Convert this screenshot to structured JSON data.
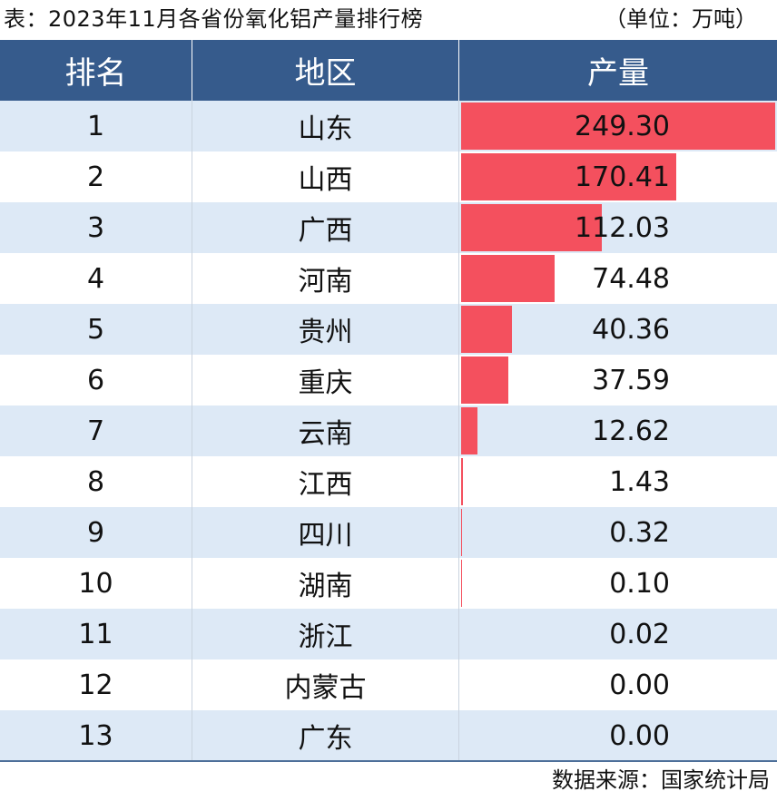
{
  "header": {
    "title": "表：2023年11月各省份氧化铝产量排行榜",
    "unit": "（单位：万吨）"
  },
  "table": {
    "columns": [
      "排名",
      "地区",
      "产量"
    ],
    "rows": [
      {
        "rank": "1",
        "region": "山东",
        "value": "249.30"
      },
      {
        "rank": "2",
        "region": "山西",
        "value": "170.41"
      },
      {
        "rank": "3",
        "region": "广西",
        "value": "112.03"
      },
      {
        "rank": "4",
        "region": "河南",
        "value": "74.48"
      },
      {
        "rank": "5",
        "region": "贵州",
        "value": "40.36"
      },
      {
        "rank": "6",
        "region": "重庆",
        "value": "37.59"
      },
      {
        "rank": "7",
        "region": "云南",
        "value": "12.62"
      },
      {
        "rank": "8",
        "region": "江西",
        "value": "1.43"
      },
      {
        "rank": "9",
        "region": "四川",
        "value": "0.32"
      },
      {
        "rank": "10",
        "region": "湖南",
        "value": "0.10"
      },
      {
        "rank": "11",
        "region": "浙江",
        "value": "0.02"
      },
      {
        "rank": "12",
        "region": "内蒙古",
        "value": "0.00"
      },
      {
        "rank": "13",
        "region": "广东",
        "value": "0.00"
      }
    ]
  },
  "footer": {
    "source": "数据来源：国家统计局"
  },
  "chart_data": {
    "type": "table",
    "title": "表：2023年11月各省份氧化铝产量排行榜",
    "unit": "（单位：万吨）",
    "columns": [
      "排名",
      "地区",
      "产量"
    ],
    "categories": [
      "山东",
      "山西",
      "广西",
      "河南",
      "贵州",
      "重庆",
      "云南",
      "江西",
      "四川",
      "湖南",
      "浙江",
      "内蒙古",
      "广东"
    ],
    "values": [
      249.3,
      170.41,
      112.03,
      74.48,
      40.36,
      37.59,
      12.62,
      1.43,
      0.32,
      0.1,
      0.02,
      0.0,
      0.0
    ],
    "bar_color": "#f4505e",
    "header_color": "#365b8c",
    "stripe_color": "#dde9f6"
  }
}
